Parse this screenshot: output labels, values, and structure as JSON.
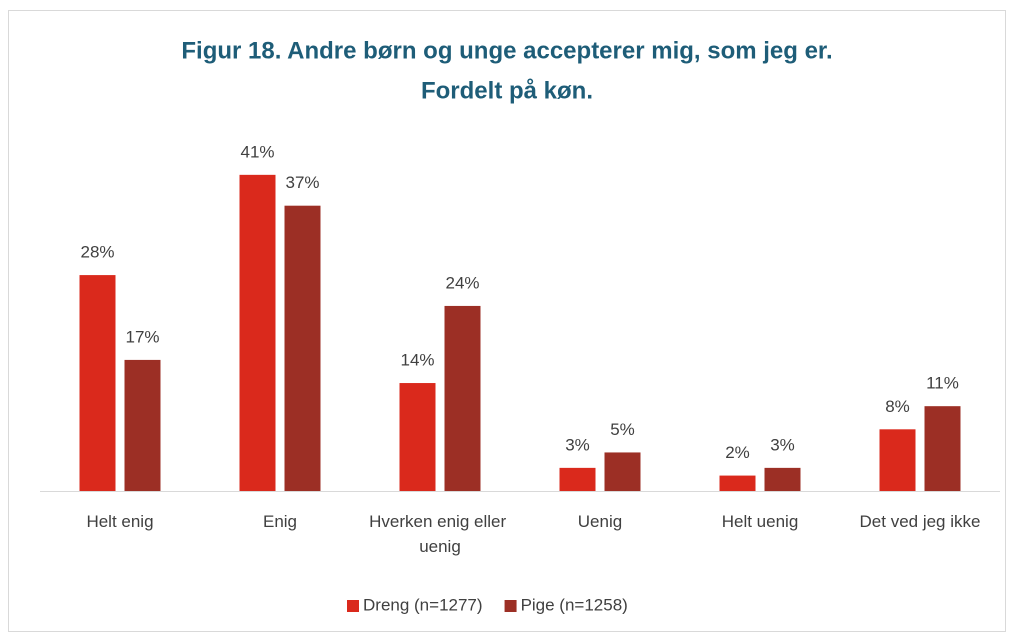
{
  "chart_data": {
    "type": "bar",
    "title": [
      "Figur 18. Andre børn og unge accepterer mig, som jeg er.",
      "Fordelt på køn."
    ],
    "categories": [
      "Helt enig",
      "Enig",
      "Hverken enig eller uenig",
      "Uenig",
      "Helt uenig",
      "Det ved jeg ikke"
    ],
    "series": [
      {
        "name": "Dreng (n=1277)",
        "color": "#da291c",
        "values": [
          28,
          41,
          14,
          3,
          2,
          8
        ],
        "value_labels": [
          "28%",
          "41%",
          "14%",
          "3%",
          "2%",
          "8%"
        ]
      },
      {
        "name": "Pige (n=1258)",
        "color": "#9c2f25",
        "values": [
          17,
          37,
          24,
          5,
          3,
          11
        ],
        "value_labels": [
          "17%",
          "37%",
          "24%",
          "5%",
          "3%",
          "11%"
        ]
      }
    ],
    "ylim": [
      0,
      45
    ],
    "legend": "bottom"
  }
}
